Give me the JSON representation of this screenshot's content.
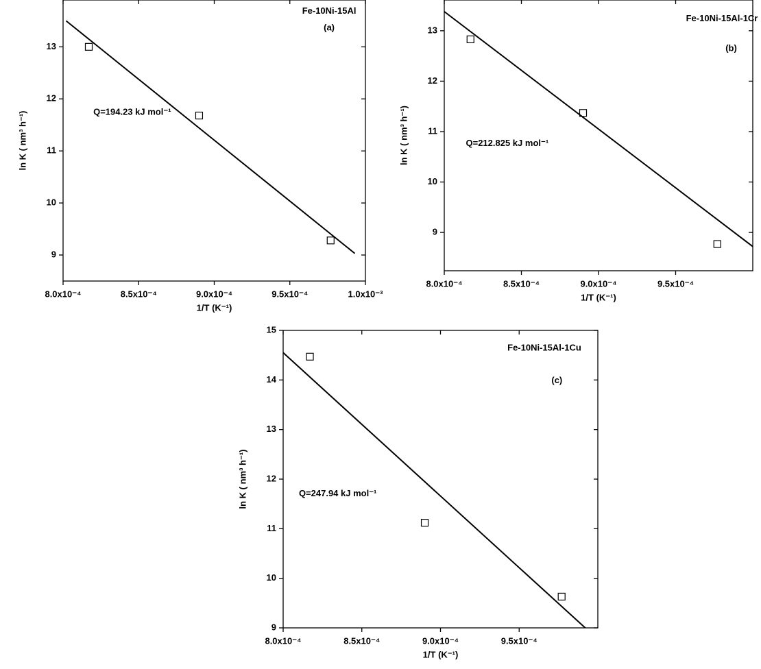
{
  "chart_data": [
    {
      "type": "scatter",
      "label": "Fe-10Ni-15Al",
      "panel": "(a)",
      "annotation": "Q=194.23 kJ mol⁻¹",
      "xlabel": "1/T (K⁻¹)",
      "ylabel": "ln K ( nm³ h⁻¹)",
      "xlim": [
        0.0008,
        0.001
      ],
      "ylim": [
        8.5,
        13.9
      ],
      "xticks": [
        {
          "value": 0.0008,
          "label": "8.0x10⁻⁴"
        },
        {
          "value": 0.00085,
          "label": "8.5x10⁻⁴"
        },
        {
          "value": 0.0009,
          "label": "9.0x10⁻⁴"
        },
        {
          "value": 0.00095,
          "label": "9.5x10⁻⁴"
        },
        {
          "value": 0.001,
          "label": "1.0x10⁻³"
        }
      ],
      "yticks": [
        9,
        10,
        11,
        12,
        13
      ],
      "series": [
        {
          "marker": "square",
          "color": "#000000",
          "x": [
            0.000817,
            0.00089,
            0.000977
          ],
          "values": [
            13.0,
            11.68,
            9.28
          ]
        },
        {
          "marker": "line",
          "color": "#000000",
          "x": [
            0.000802,
            0.000993
          ],
          "values": [
            13.5,
            9.03
          ]
        }
      ]
    },
    {
      "type": "scatter",
      "label": "Fe-10Ni-15Al-1Cr",
      "panel": "(b)",
      "annotation": "Q=212.825 kJ mol⁻¹",
      "xlabel": "1/T (K⁻¹)",
      "ylabel": "ln K ( nm³ h⁻¹)",
      "xlim": [
        0.0008,
        0.001
      ],
      "ylim": [
        8.24,
        13.61
      ],
      "xticks": [
        {
          "value": 0.0008,
          "label": "8.0x10⁻⁴"
        },
        {
          "value": 0.00085,
          "label": "8.5x10⁻⁴"
        },
        {
          "value": 0.0009,
          "label": "9.0x10⁻⁴"
        },
        {
          "value": 0.00095,
          "label": "9.5x10⁻⁴"
        }
      ],
      "yticks": [
        9,
        10,
        11,
        12,
        13
      ],
      "series": [
        {
          "marker": "square",
          "color": "#000000",
          "x": [
            0.000817,
            0.00089,
            0.000977
          ],
          "values": [
            12.83,
            11.37,
            8.77
          ]
        },
        {
          "marker": "line",
          "color": "#000000",
          "x": [
            0.0008,
            0.001
          ],
          "values": [
            13.38,
            8.72
          ]
        }
      ]
    },
    {
      "type": "scatter",
      "label": "Fe-10Ni-15Al-1Cu",
      "panel": "(c)",
      "annotation": "Q=247.94 kJ mol⁻¹",
      "xlabel": "1/T (K⁻¹)",
      "ylabel": "ln K ( nm³ h⁻¹)",
      "xlim": [
        0.0008,
        0.001
      ],
      "ylim": [
        9,
        15
      ],
      "xticks": [
        {
          "value": 0.0008,
          "label": "8.0x10⁻⁴"
        },
        {
          "value": 0.00085,
          "label": "8.5x10⁻⁴"
        },
        {
          "value": 0.0009,
          "label": "9.0x10⁻⁴"
        },
        {
          "value": 0.00095,
          "label": "9.5x10⁻⁴"
        }
      ],
      "yticks": [
        9,
        10,
        11,
        12,
        13,
        14,
        15
      ],
      "series": [
        {
          "marker": "square",
          "color": "#000000",
          "x": [
            0.000817,
            0.00089,
            0.000977
          ],
          "values": [
            14.47,
            11.12,
            9.63
          ]
        },
        {
          "marker": "line",
          "color": "#000000",
          "x": [
            0.0008,
            0.000992
          ],
          "values": [
            14.55,
            9.0
          ]
        }
      ]
    }
  ]
}
